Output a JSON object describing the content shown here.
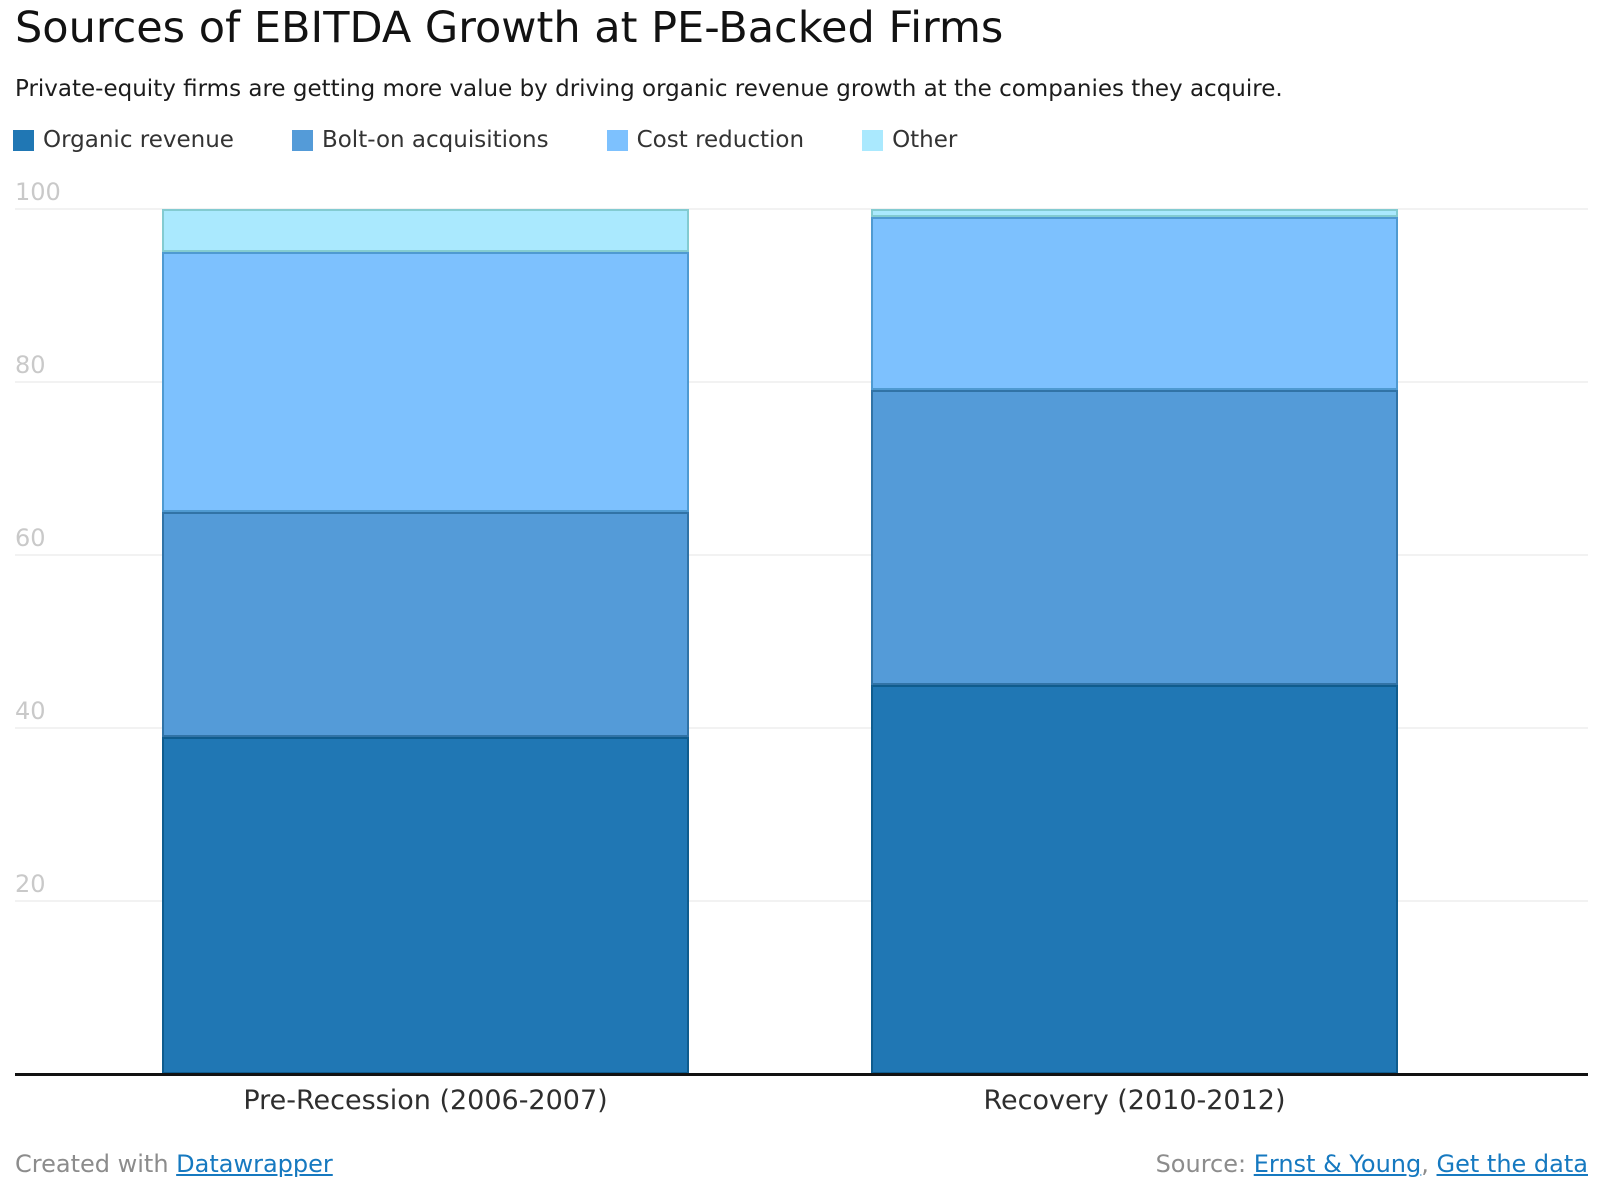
{
  "header": {
    "title": "Sources of EBITDA Growth at PE-Backed Firms",
    "subtitle": "Private-equity firms are getting more value by driving organic revenue growth at the companies they acquire."
  },
  "colors": {
    "background": "#ffffff",
    "axis": "#121212",
    "gridline": "#f2f2f2",
    "tick_label": "#c9c9c9",
    "link": "#1679c0",
    "footer_text": "#8c8c8c"
  },
  "chart_data": {
    "type": "bar",
    "stacked": true,
    "orientation": "vertical",
    "categories": [
      "Pre-Recession (2006-2007)",
      "Recovery (2010-2012)"
    ],
    "series": [
      {
        "name": "Organic revenue",
        "values": [
          39,
          45
        ],
        "color": "#2077b4",
        "stroke": "#0f5c8e"
      },
      {
        "name": "Bolt-on acquisitions",
        "values": [
          26,
          34
        ],
        "color": "#549bd8",
        "stroke": "#3173a6"
      },
      {
        "name": "Cost reduction",
        "values": [
          30,
          20
        ],
        "color": "#7dc1fe",
        "stroke": "#4f9ad1"
      },
      {
        "name": "Other",
        "values": [
          5,
          1
        ],
        "color": "#aae9fe",
        "stroke": "#83cbd1"
      }
    ],
    "ylim": [
      0,
      100
    ],
    "yticks": [
      20,
      40,
      60,
      80,
      100
    ],
    "grid": true,
    "legend_position": "top",
    "xlabel": "",
    "ylabel": ""
  },
  "footer": {
    "created_with": "Created with",
    "datawrapper_link": "Datawrapper",
    "source_label": "Source:",
    "source_link": "Ernst & Young",
    "separator": ",",
    "data_link": "Get the data"
  }
}
